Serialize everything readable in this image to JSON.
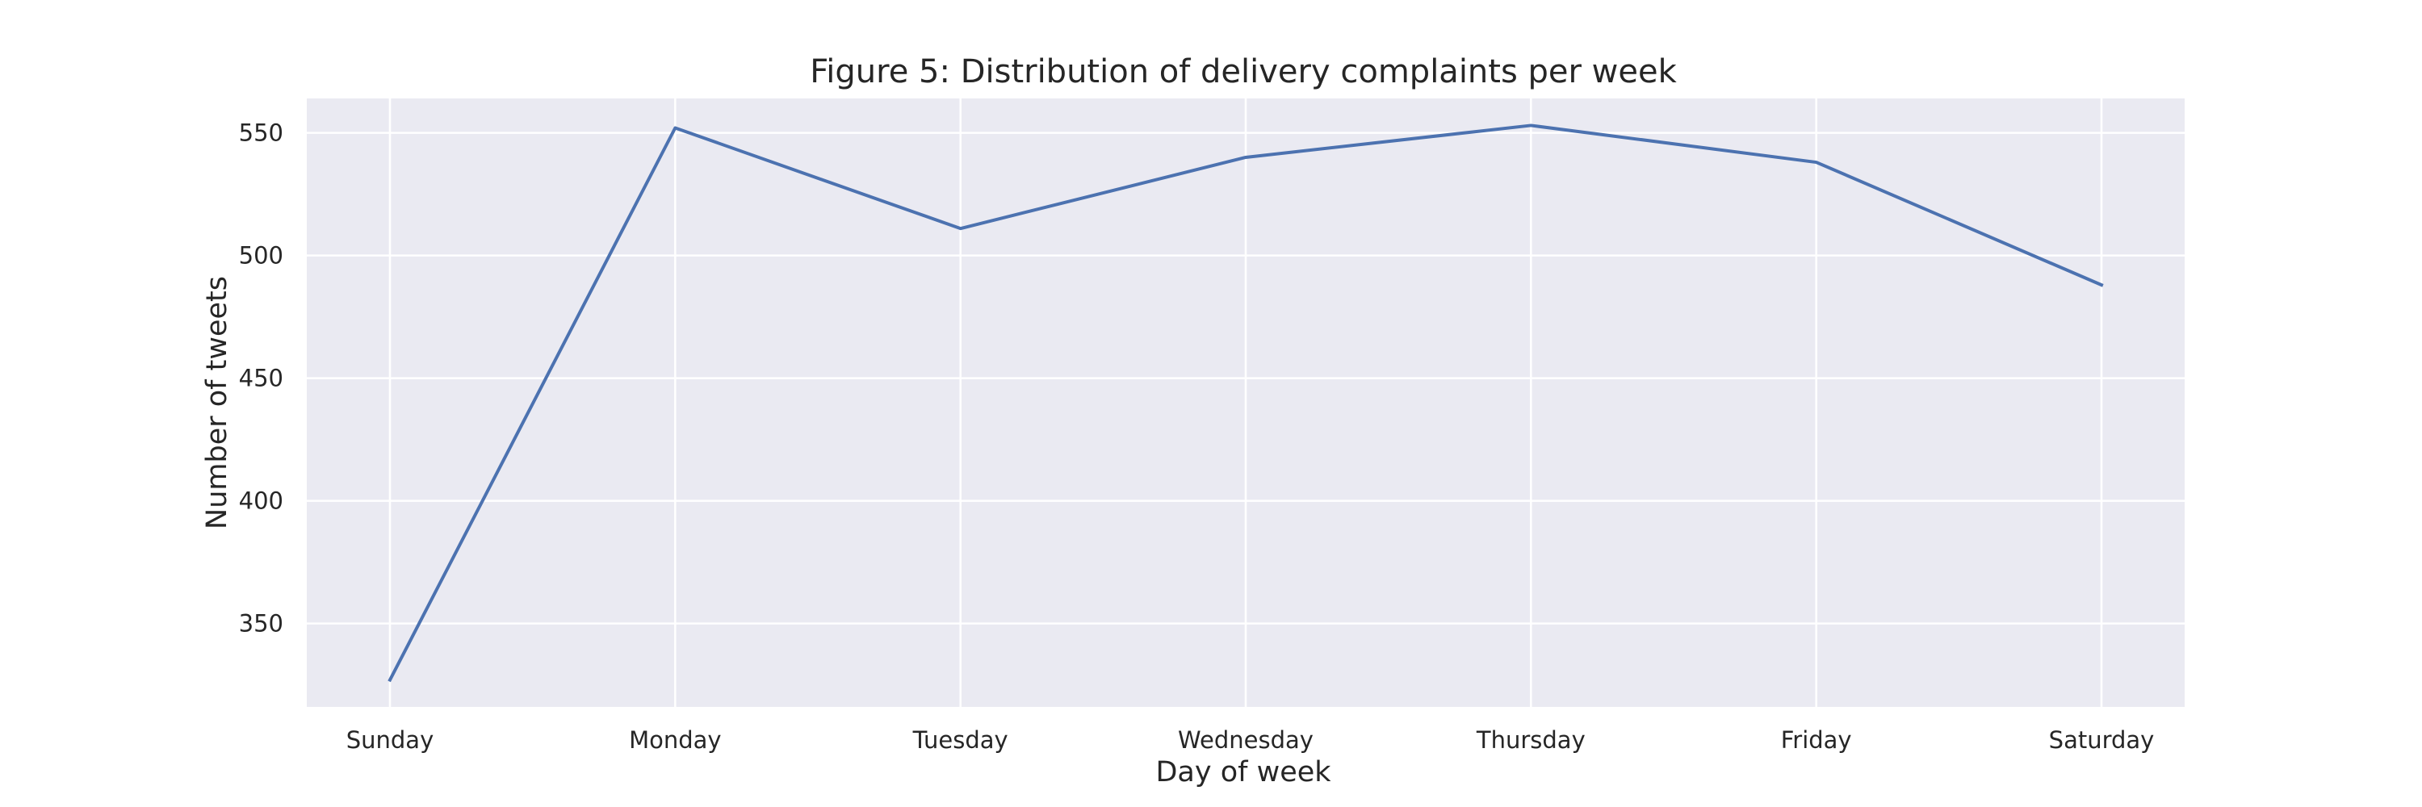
{
  "chart_data": {
    "type": "line",
    "title": "Figure 5: Distribution of delivery complaints per week",
    "xlabel": "Day of week",
    "ylabel": "Number of tweets",
    "categories": [
      "Sunday",
      "Monday",
      "Tuesday",
      "Wednesday",
      "Thursday",
      "Friday",
      "Saturday"
    ],
    "series": [
      {
        "values": [
          327,
          552,
          511,
          540,
          553,
          538,
          488
        ]
      }
    ],
    "yticks": [
      350,
      400,
      450,
      500,
      550
    ],
    "ylim": [
      316,
      564
    ],
    "grid": true,
    "legend": "none",
    "colors": {
      "line": "#4c72b0",
      "plot_background": "#eaeaf2",
      "grid": "#ffffff",
      "text": "#262626"
    }
  }
}
